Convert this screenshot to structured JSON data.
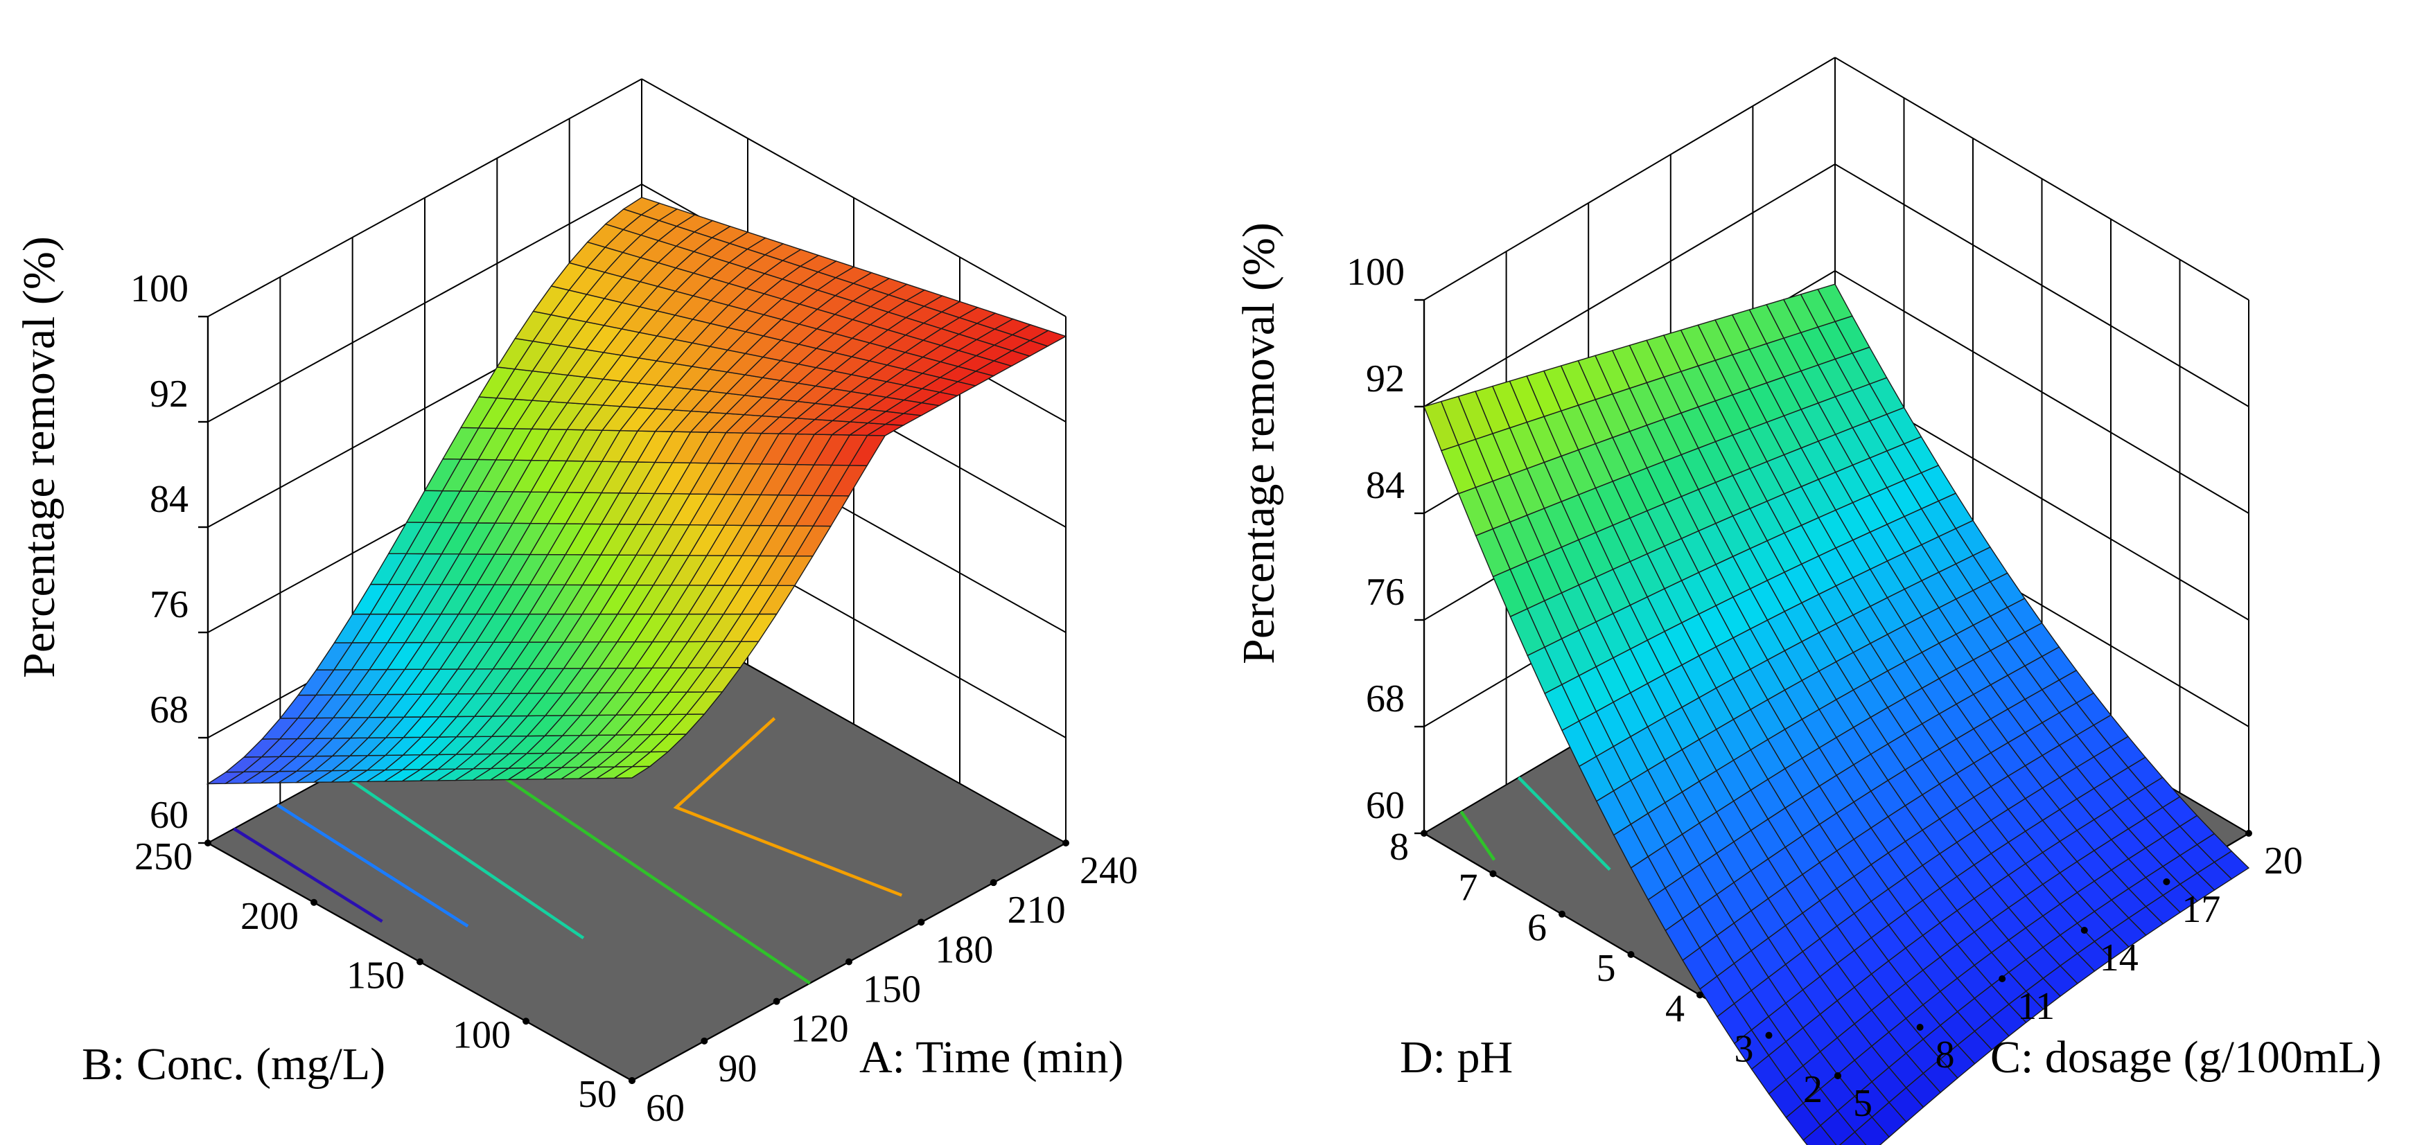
{
  "chart_data": [
    {
      "type": "surface3d",
      "id": "left",
      "zlabel": "Percentage removal (%)",
      "xlabel": "A: Time (min)",
      "ylabel": "B: Conc. (mg/L)",
      "zticks": [
        "60",
        "68",
        "76",
        "84",
        "92",
        "100"
      ],
      "xticks": [
        "60",
        "90",
        "120",
        "150",
        "180",
        "210",
        "240"
      ],
      "yticks": [
        "50",
        "100",
        "150",
        "200",
        "250"
      ],
      "zlim": [
        60,
        100
      ],
      "xlim": [
        60,
        240
      ],
      "ylim": [
        50,
        250
      ],
      "surface_corners": {
        "time60_conc250": 64.5,
        "time60_conc50": 83,
        "time240_conc250": 91,
        "time240_conc50": 98.5,
        "peak_time150_conc50": 98
      },
      "contour_colors": [
        "#2a0fb0",
        "#1a7cff",
        "#14d2a0",
        "#2fc22a",
        "#f5a000"
      ],
      "colormap": [
        "#5a3fe6",
        "#2d6dff",
        "#00d8f0",
        "#23e07a",
        "#9bef1c",
        "#f2c81a",
        "#f06e1e",
        "#e81818"
      ]
    },
    {
      "type": "surface3d",
      "id": "right",
      "zlabel": "Percentage removal (%)",
      "xlabel": "C: dosage (g/100mL)",
      "ylabel": "D: pH",
      "zticks": [
        "60",
        "68",
        "76",
        "84",
        "92",
        "100"
      ],
      "xticks": [
        "5",
        "8",
        "11",
        "14",
        "17",
        "20"
      ],
      "yticks": [
        "2",
        "3",
        "4",
        "5",
        "6",
        "7",
        "8"
      ],
      "zlim": [
        60,
        100
      ],
      "xlim": [
        5,
        20
      ],
      "ylim": [
        2,
        8
      ],
      "surface_corners": {
        "dose5_pH8": 92,
        "dose5_pH2": 52,
        "dose20_pH8": 82,
        "dose20_pH2": 58
      },
      "contour_colors": [
        "#2fc22a",
        "#14d2a0",
        "#1a7cff",
        "#2a2fdc",
        "#2a2fdc"
      ],
      "colormap": [
        "#1012e8",
        "#1a3dff",
        "#1480ff",
        "#00d8f0",
        "#23e07a",
        "#9bef1c",
        "#c8c020"
      ]
    }
  ]
}
